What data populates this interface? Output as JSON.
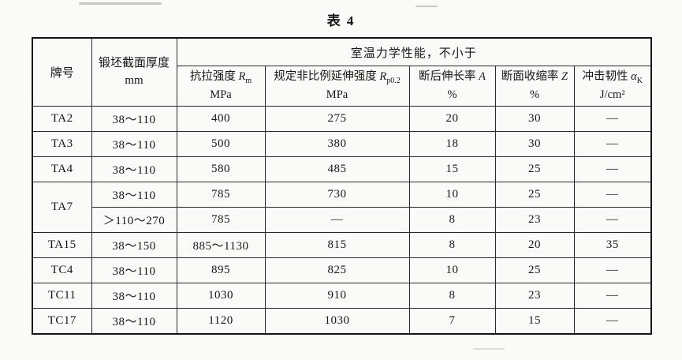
{
  "page": {
    "background": "#fafaf8",
    "ink": "#161616"
  },
  "table": {
    "title": "表 4",
    "header": {
      "grade": "牌号",
      "thickness_line1": "锻坯截面厚度",
      "thickness_unit": "mm",
      "span_label": "室温力学性能，不小于",
      "columns": [
        {
          "label": "抗拉强度 ",
          "sym": "R",
          "sub": "m",
          "unit": "MPa"
        },
        {
          "label": "规定非比例延伸强度 ",
          "sym": "R",
          "sub": "p0.2",
          "unit": "MPa"
        },
        {
          "label": "断后伸长率 ",
          "sym": "A",
          "sub": "",
          "unit": "%"
        },
        {
          "label": "断面收缩率 ",
          "sym": "Z",
          "sub": "",
          "unit": "%"
        },
        {
          "label": "冲击韧性 ",
          "sym": "α",
          "sub": "K",
          "unit": "J/cm²"
        }
      ]
    },
    "rows": [
      {
        "grade": "TA2",
        "grade_rowspan": 1,
        "cells": [
          "38～110",
          "400",
          "275",
          "20",
          "30",
          "—"
        ]
      },
      {
        "grade": "TA3",
        "grade_rowspan": 1,
        "cells": [
          "38～110",
          "500",
          "380",
          "18",
          "30",
          "—"
        ]
      },
      {
        "grade": "TA4",
        "grade_rowspan": 1,
        "cells": [
          "38～110",
          "580",
          "485",
          "15",
          "25",
          "—"
        ]
      },
      {
        "grade": "TA7",
        "grade_rowspan": 2,
        "cells": [
          "38～110",
          "785",
          "730",
          "10",
          "25",
          "—"
        ]
      },
      {
        "grade": null,
        "grade_rowspan": 1,
        "cells": [
          "＞110～270",
          "785",
          "—",
          "8",
          "23",
          "—"
        ]
      },
      {
        "grade": "TA15",
        "grade_rowspan": 1,
        "cells": [
          "38～150",
          "885～1130",
          "815",
          "8",
          "20",
          "35"
        ]
      },
      {
        "grade": "TC4",
        "grade_rowspan": 1,
        "cells": [
          "38～110",
          "895",
          "825",
          "10",
          "25",
          "—"
        ]
      },
      {
        "grade": "TC11",
        "grade_rowspan": 1,
        "cells": [
          "38～110",
          "1030",
          "910",
          "8",
          "23",
          "—"
        ]
      },
      {
        "grade": "TC17",
        "grade_rowspan": 1,
        "cells": [
          "38～110",
          "1120",
          "1030",
          "7",
          "15",
          "—"
        ]
      }
    ]
  }
}
